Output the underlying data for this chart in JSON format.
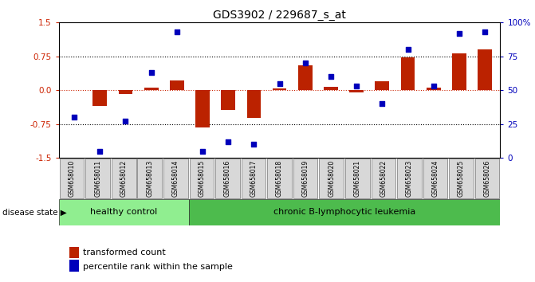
{
  "title": "GDS3902 / 229687_s_at",
  "samples": [
    "GSM658010",
    "GSM658011",
    "GSM658012",
    "GSM658013",
    "GSM658014",
    "GSM658015",
    "GSM658016",
    "GSM658017",
    "GSM658018",
    "GSM658019",
    "GSM658020",
    "GSM658021",
    "GSM658022",
    "GSM658023",
    "GSM658024",
    "GSM658025",
    "GSM658026"
  ],
  "transformed_count": [
    0.0,
    -0.35,
    -0.08,
    0.05,
    0.22,
    -0.82,
    -0.43,
    -0.62,
    0.04,
    0.55,
    0.08,
    -0.04,
    0.2,
    0.72,
    0.06,
    0.82,
    0.9
  ],
  "percentile_rank": [
    30,
    5,
    27,
    63,
    93,
    5,
    12,
    10,
    55,
    70,
    60,
    53,
    40,
    80,
    53,
    92,
    93
  ],
  "disease_groups": [
    {
      "label": "healthy control",
      "start": 0,
      "end": 5,
      "color": "#90ee90"
    },
    {
      "label": "chronic B-lymphocytic leukemia",
      "start": 5,
      "end": 17,
      "color": "#4dbb4d"
    }
  ],
  "bar_color": "#bb2200",
  "dot_color": "#0000bb",
  "ylim_left": [
    -1.5,
    1.5
  ],
  "ylim_right": [
    0,
    100
  ],
  "yticks_left": [
    -1.5,
    -0.75,
    0.0,
    0.75,
    1.5
  ],
  "yticks_right": [
    0,
    25,
    50,
    75,
    100
  ],
  "dotted_lines": [
    -0.75,
    0.75
  ],
  "zero_line_color": "#cc2200",
  "legend_bar_label": "transformed count",
  "legend_dot_label": "percentile rank within the sample",
  "disease_state_label": "disease state"
}
